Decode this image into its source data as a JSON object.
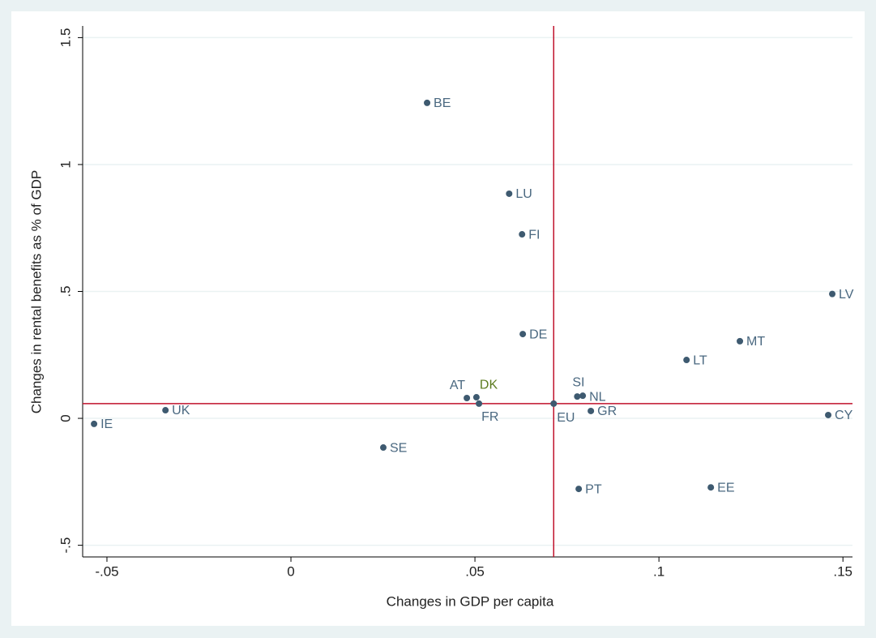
{
  "chart_data": {
    "type": "scatter",
    "x_label": "Changes in GDP per capita",
    "y_label": "Changes in rental benefits as % of GDP",
    "labels": [
      "BE",
      "LU",
      "FI",
      "LV",
      "DE",
      "MT",
      "LT",
      "AT",
      "DK",
      "FR",
      "SI",
      "NL",
      "EU",
      "GR",
      "CY",
      "UK",
      "IE",
      "SE",
      "PT",
      "EE"
    ],
    "x": [
      0.037,
      0.0593,
      0.0628,
      0.1471,
      0.063,
      0.122,
      0.1075,
      0.0478,
      0.0504,
      0.0511,
      0.0778,
      0.0793,
      0.0714,
      0.0815,
      0.146,
      -0.0341,
      -0.0535,
      0.0251,
      0.0782,
      0.1141
    ],
    "values": [
      1.243,
      0.885,
      0.725,
      0.49,
      0.332,
      0.304,
      0.23,
      0.08,
      0.083,
      0.058,
      0.086,
      0.089,
      0.058,
      0.029,
      0.013,
      0.032,
      -0.022,
      -0.115,
      -0.278,
      -0.272
    ],
    "color": "#3e5a70",
    "label_colors": [
      "#4a6880",
      "#4a6880",
      "#4a6880",
      "#4a6880",
      "#4a6880",
      "#4a6880",
      "#4a6880",
      "#4a6880",
      "#5b7a1e",
      "#4a6880",
      "#4a6880",
      "#4a6880",
      "#4a6880",
      "#4a6880",
      "#4a6880",
      "#4a6880",
      "#4a6880",
      "#4a6880",
      "#4a6880",
      "#4a6880"
    ],
    "reference_lines": {
      "x": 0.0714,
      "y": 0.058,
      "color": "#c0122c"
    },
    "xlim": [
      -0.0566,
      0.1526
    ],
    "ylim": [
      -0.546,
      1.546
    ],
    "xticks": [
      {
        "value": -0.05,
        "label": "-.05"
      },
      0,
      {
        "value": 0.05,
        "label": ".05"
      },
      {
        "value": 0.1,
        "label": ".1"
      },
      {
        "value": 0.15,
        "label": ".15"
      }
    ],
    "yticks": [
      {
        "value": -0.5,
        "label": "-.5"
      },
      0,
      {
        "value": 0.5,
        "label": ".5"
      },
      1,
      {
        "value": 1.5,
        "label": "1.5"
      }
    ],
    "grid": true
  }
}
